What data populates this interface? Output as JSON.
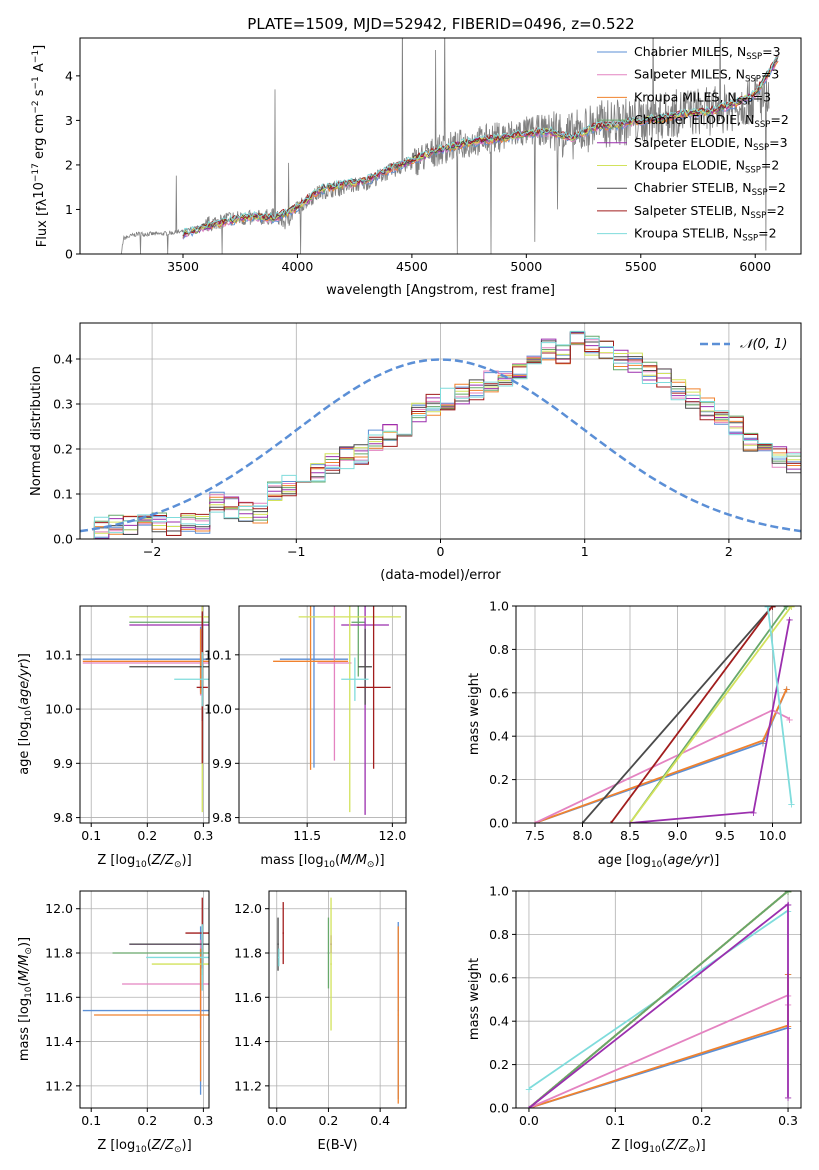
{
  "figure_title": "PLATE=1509, MJD=52942, FIBERID=0496, z=0.522",
  "colors": {
    "Chabrier MILES": "#5b8fd6",
    "Salpeter MILES": "#e483c1",
    "Kroupa MILES": "#f0822e",
    "Chabrier ELODIE": "#67a86b",
    "Salpeter ELODIE": "#9b2fae",
    "Kroupa ELODIE": "#d2e25c",
    "Chabrier STELIB": "#4a4a4a",
    "Salpeter STELIB": "#a11d1d",
    "Kroupa STELIB": "#7fdcdc",
    "data": "#808080",
    "normal": "#5b8fd6"
  },
  "chart_data": [
    {
      "id": "spectrum",
      "type": "line",
      "title": "PLATE=1509, MJD=52942, FIBERID=0496, z=0.522",
      "xlabel": "wavelength [Angstrom, rest frame]",
      "ylabel_parts": [
        "Flux [f",
        "λ",
        "10",
        "−17",
        " erg cm",
        "−2",
        " s",
        "−1",
        " A",
        "−1",
        "]"
      ],
      "xlim": [
        3050,
        6200
      ],
      "ylim": [
        0,
        4.85
      ],
      "xticks": [
        3500,
        4000,
        4500,
        5000,
        5500,
        6000
      ],
      "yticks": [
        0,
        1,
        2,
        3,
        4
      ],
      "grid": false,
      "legend_position": "top-right",
      "legend": [
        {
          "label": "Chabrier MILES, N",
          "sub": "SSP",
          "suffix": "=3",
          "key": "Chabrier MILES"
        },
        {
          "label": "Salpeter MILES, N",
          "sub": "SSP",
          "suffix": "=3",
          "key": "Salpeter MILES"
        },
        {
          "label": "Kroupa MILES, N",
          "sub": "SSP",
          "suffix": "=3",
          "key": "Kroupa MILES"
        },
        {
          "label": "Chabrier ELODIE, N",
          "sub": "SSP",
          "suffix": "=2",
          "key": "Chabrier ELODIE"
        },
        {
          "label": "Salpeter ELODIE, N",
          "sub": "SSP",
          "suffix": "=3",
          "key": "Salpeter ELODIE"
        },
        {
          "label": "Kroupa ELODIE, N",
          "sub": "SSP",
          "suffix": "=2",
          "key": "Kroupa ELODIE"
        },
        {
          "label": "Chabrier STELIB, N",
          "sub": "SSP",
          "suffix": "=2",
          "key": "Chabrier STELIB"
        },
        {
          "label": "Salpeter STELIB, N",
          "sub": "SSP",
          "suffix": "=2",
          "key": "Salpeter STELIB"
        },
        {
          "label": "Kroupa STELIB, N",
          "sub": "SSP",
          "suffix": "=2",
          "key": "Kroupa STELIB"
        }
      ],
      "data_spectrum": {
        "x": [
          3200,
          3230,
          3240,
          3300,
          3400,
          3500,
          3600,
          3700,
          3800,
          3900,
          3950,
          4000,
          4100,
          4200,
          4300,
          4400,
          4500,
          4600,
          4700,
          4800,
          4900,
          5000,
          5100,
          5200,
          5300,
          5400,
          5500,
          5600,
          5700,
          5800,
          5900,
          6000,
          6050
        ],
        "y": [
          0,
          0,
          0.35,
          0.45,
          0.45,
          0.5,
          0.65,
          0.8,
          0.8,
          0.85,
          0.7,
          1.05,
          1.4,
          1.5,
          1.6,
          1.85,
          2.05,
          2.3,
          2.45,
          2.55,
          2.65,
          2.75,
          2.8,
          2.65,
          2.9,
          2.95,
          3.0,
          3.1,
          3.2,
          3.2,
          3.3,
          3.5,
          3.5
        ]
      },
      "model_spectrum": {
        "x": [
          3500,
          3600,
          3700,
          3800,
          3900,
          4000,
          4100,
          4200,
          4300,
          4400,
          4500,
          4600,
          4700,
          4800,
          4900,
          5000,
          5100,
          5200,
          5300,
          5400,
          5500,
          5600,
          5700,
          5800,
          5900,
          6000,
          6100
        ],
        "y": [
          0.45,
          0.6,
          0.75,
          0.85,
          0.8,
          1.05,
          1.45,
          1.55,
          1.65,
          1.9,
          2.1,
          2.3,
          2.45,
          2.55,
          2.6,
          2.7,
          2.75,
          2.6,
          2.85,
          2.9,
          3.0,
          3.05,
          3.15,
          3.2,
          3.35,
          3.6,
          4.4
        ]
      }
    },
    {
      "id": "residuals",
      "type": "bar",
      "xlabel": "(data-model)/error",
      "ylabel": "Normed distribution",
      "xlim": [
        -2.5,
        2.5
      ],
      "ylim": [
        0,
        0.48
      ],
      "xticks": [
        -2,
        -1,
        0,
        1,
        2
      ],
      "yticks": [
        0.0,
        0.1,
        0.2,
        0.3,
        0.4
      ],
      "grid": true,
      "legend_position": "top-right",
      "legend_label": "𝒩(0, 1)",
      "bin_width": 0.1,
      "bin_start": -2.5,
      "histogram": [
        0.02,
        0.025,
        0.03,
        0.035,
        0.03,
        0.035,
        0.03,
        0.04,
        0.035,
        0.08,
        0.07,
        0.06,
        0.06,
        0.11,
        0.12,
        0.13,
        0.15,
        0.17,
        0.18,
        0.19,
        0.22,
        0.23,
        0.24,
        0.28,
        0.3,
        0.31,
        0.32,
        0.33,
        0.35,
        0.36,
        0.38,
        0.4,
        0.42,
        0.41,
        0.44,
        0.43,
        0.42,
        0.4,
        0.39,
        0.37,
        0.36,
        0.33,
        0.31,
        0.29,
        0.27,
        0.25,
        0.22,
        0.2,
        0.18,
        0.17
      ],
      "normal_curve": {
        "mu": 0,
        "sigma": 1
      }
    },
    {
      "id": "age-vs-Z",
      "type": "scatter",
      "xlabel": "Z [log10(Z/Z⊙)]",
      "ylabel": "age [log10(age/yr)]",
      "xlim": [
        0.08,
        0.31
      ],
      "ylim": [
        9.79,
        10.19
      ],
      "xticks": [
        0.1,
        0.2,
        0.3
      ],
      "yticks": [
        9.8,
        9.9,
        10.0,
        10.1
      ],
      "grid": true
    },
    {
      "id": "age-vs-mass",
      "type": "scatter",
      "xlabel": "mass [log10(M/M⊙)]",
      "ylabel": "",
      "xlim": [
        11.1,
        12.08
      ],
      "ylim": [
        9.79,
        10.19
      ],
      "xticks": [
        11.5,
        12.0
      ],
      "yticks": [
        9.8,
        9.9,
        10.0,
        10.1
      ],
      "grid": true
    },
    {
      "id": "massweight-vs-age",
      "type": "line",
      "xlabel": "age [log10(age/yr)]",
      "ylabel": "mass weight",
      "xlim": [
        7.3,
        10.3
      ],
      "ylim": [
        0,
        1.0
      ],
      "xticks": [
        7.5,
        8.0,
        8.5,
        9.0,
        9.5,
        10.0
      ],
      "yticks": [
        0.0,
        0.2,
        0.4,
        0.6,
        0.8,
        1.0
      ],
      "grid": true,
      "series": [
        {
          "key": "Chabrier MILES",
          "x": [
            7.5,
            9.9,
            10.15
          ],
          "y": [
            0,
            0.37,
            0.62
          ]
        },
        {
          "key": "Kroupa MILES",
          "x": [
            7.5,
            9.9,
            10.15
          ],
          "y": [
            0,
            0.38,
            0.62
          ]
        },
        {
          "key": "Salpeter MILES",
          "x": [
            7.5,
            10.0,
            10.18
          ],
          "y": [
            0,
            0.52,
            0.48
          ]
        },
        {
          "key": "Chabrier STELIB",
          "x": [
            8.0,
            10.0
          ],
          "y": [
            0,
            1.0
          ]
        },
        {
          "key": "Salpeter STELIB",
          "x": [
            8.3,
            10.0
          ],
          "y": [
            0,
            1.0
          ]
        },
        {
          "key": "Chabrier ELODIE",
          "x": [
            8.5,
            10.15
          ],
          "y": [
            0,
            1.0
          ]
        },
        {
          "key": "Kroupa ELODIE",
          "x": [
            8.5,
            10.2
          ],
          "y": [
            0,
            1.0
          ]
        },
        {
          "key": "Salpeter ELODIE",
          "x": [
            8.5,
            9.8,
            10.18
          ],
          "y": [
            0,
            0.05,
            0.94
          ]
        },
        {
          "key": "Kroupa STELIB",
          "x": [
            9.95,
            10.2
          ],
          "y": [
            1.0,
            0.09
          ]
        }
      ]
    },
    {
      "id": "mass-vs-Z",
      "type": "scatter",
      "xlabel": "Z [log10(Z/Z⊙)]",
      "ylabel": "mass [log10(M/M⊙)]",
      "xlim": [
        0.08,
        0.31
      ],
      "ylim": [
        11.1,
        12.08
      ],
      "xticks": [
        0.1,
        0.2,
        0.3
      ],
      "yticks": [
        11.2,
        11.4,
        11.6,
        11.8,
        12.0
      ],
      "grid": true
    },
    {
      "id": "mass-vs-ebv",
      "type": "scatter",
      "xlabel": "E(B-V)",
      "ylabel": "",
      "xlim": [
        -0.03,
        0.5
      ],
      "ylim": [
        11.1,
        12.08
      ],
      "xticks": [
        0.0,
        0.2,
        0.4
      ],
      "yticks": [
        11.2,
        11.4,
        11.6,
        11.8,
        12.0
      ],
      "grid": true
    },
    {
      "id": "massweight-vs-Z",
      "type": "line",
      "xlabel": "Z [log10(Z/Z⊙)]",
      "ylabel": "mass weight",
      "xlim": [
        -0.015,
        0.315
      ],
      "ylim": [
        0,
        1.0
      ],
      "xticks": [
        0.0,
        0.1,
        0.2,
        0.3
      ],
      "yticks": [
        0.0,
        0.2,
        0.4,
        0.6,
        0.8,
        1.0
      ],
      "grid": true,
      "series": [
        {
          "key": "Chabrier MILES",
          "x": [
            0.0,
            0.3,
            0.3
          ],
          "y": [
            0,
            0.37,
            0.62
          ]
        },
        {
          "key": "Kroupa MILES",
          "x": [
            0.0,
            0.3,
            0.3
          ],
          "y": [
            0,
            0.38,
            0.62
          ]
        },
        {
          "key": "Salpeter MILES",
          "x": [
            0.0,
            0.3,
            0.3
          ],
          "y": [
            0,
            0.52,
            0.48
          ]
        },
        {
          "key": "Kroupa STELIB",
          "x": [
            0.0,
            0.3
          ],
          "y": [
            0.09,
            0.91
          ]
        },
        {
          "key": "Chabrier STELIB",
          "x": [
            0.0,
            0.3
          ],
          "y": [
            0,
            1.0
          ]
        },
        {
          "key": "Salpeter STELIB",
          "x": [
            0.0,
            0.3
          ],
          "y": [
            0,
            1.0
          ]
        },
        {
          "key": "Kroupa ELODIE",
          "x": [
            0.0,
            0.3
          ],
          "y": [
            0,
            1.0
          ]
        },
        {
          "key": "Chabrier ELODIE",
          "x": [
            0.0,
            0.3
          ],
          "y": [
            0,
            1.0
          ]
        },
        {
          "key": "Salpeter ELODIE",
          "x": [
            0.0,
            0.3,
            0.3,
            0.3
          ],
          "y": [
            0,
            0.94,
            0.05,
            0.94
          ]
        }
      ]
    }
  ],
  "points": {
    "Chabrier MILES": {
      "Z": 0.295,
      "age": 10.092,
      "mass": 11.54,
      "ebv": 0.47
    },
    "Salpeter MILES": {
      "Z": 0.295,
      "age": 10.085,
      "mass": 11.66,
      "ebv": 0.47
    },
    "Kroupa MILES": {
      "Z": 0.295,
      "age": 10.088,
      "mass": 11.52,
      "ebv": 0.47
    },
    "Chabrier ELODIE": {
      "Z": 0.298,
      "age": 10.16,
      "mass": 11.8,
      "ebv": 0.2
    },
    "Salpeter ELODIE": {
      "Z": 0.298,
      "age": 10.155,
      "mass": 11.84,
      "ebv": 0.21
    },
    "Kroupa ELODIE": {
      "Z": 0.298,
      "age": 10.17,
      "mass": 11.75,
      "ebv": 0.21
    },
    "Chabrier STELIB": {
      "Z": 0.298,
      "age": 10.078,
      "mass": 11.84,
      "ebv": 0.005
    },
    "Salpeter STELIB": {
      "Z": 0.298,
      "age": 10.04,
      "mass": 11.89,
      "ebv": 0.025
    },
    "Kroupa STELIB": {
      "Z": 0.298,
      "age": 10.055,
      "mass": 11.78,
      "ebv": 0.008
    }
  }
}
